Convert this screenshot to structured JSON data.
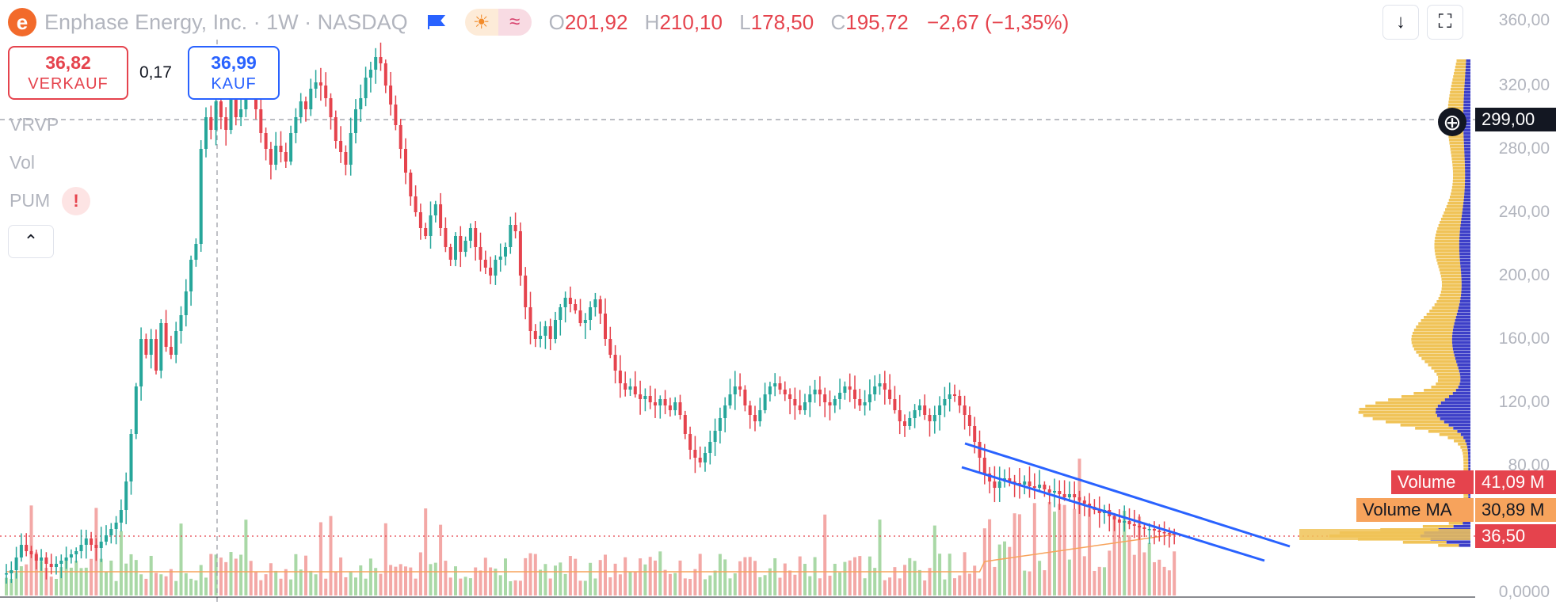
{
  "header": {
    "symbol_icon": "enphase-logo-icon",
    "title": "Enphase Energy, Inc. · 1W · NASDAQ",
    "ohlc": {
      "o_key": "O",
      "o": "201,92",
      "h_key": "H",
      "h": "210,10",
      "l_key": "L",
      "l": "178,50",
      "c_key": "C",
      "c": "195,72",
      "change": "−2,67 (−1,35%)"
    },
    "toolbar": [
      "arrow-down-icon",
      "fullscreen-icon"
    ]
  },
  "trade": {
    "sell_price": "36,82",
    "sell_label": "VERKAUF",
    "spread": "0,17",
    "buy_price": "36,99",
    "buy_label": "KAUF"
  },
  "indicators": [
    "VRVP",
    "Vol",
    "PUM"
  ],
  "price_axis": {
    "ticks": [
      "360,00",
      "320,00",
      "280,00",
      "240,00",
      "200,00",
      "160,00",
      "120,00",
      "80,00",
      "0,0000"
    ],
    "crosshair_price": "299,00",
    "current_price": "36,50",
    "volume_label": "Volume",
    "volume_value": "41,09 M",
    "volume_ma_label": "Volume MA",
    "volume_ma_value": "30,89 M"
  },
  "colors": {
    "up": "#26a69a",
    "down": "#e5434d",
    "vol_up": "#a9d8a6",
    "vol_down": "#f3a8a6",
    "channel": "#2962ff",
    "vrvp_up": "#f0c357",
    "vrvp_down": "#3d3fc8",
    "volume_ma": "#f7a35c"
  },
  "chart_data": {
    "type": "candlestick",
    "interval": "1W",
    "y_range": [
      0,
      360
    ],
    "close_path": [
      12,
      14,
      22,
      30,
      26,
      24,
      20,
      22,
      18,
      16,
      18,
      20,
      22,
      24,
      26,
      30,
      34,
      30,
      28,
      32,
      36,
      40,
      44,
      52,
      70,
      100,
      130,
      160,
      150,
      160,
      140,
      170,
      155,
      150,
      165,
      175,
      190,
      210,
      220,
      280,
      300,
      292,
      310,
      300,
      292,
      315,
      300,
      305,
      330,
      320,
      305,
      290,
      280,
      270,
      282,
      278,
      272,
      290,
      300,
      310,
      305,
      318,
      322,
      320,
      312,
      300,
      285,
      278,
      270,
      290,
      305,
      312,
      325,
      330,
      338,
      334,
      320,
      308,
      295,
      280,
      265,
      250,
      240,
      230,
      225,
      238,
      245,
      230,
      218,
      210,
      225,
      215,
      222,
      230,
      218,
      210,
      205,
      200,
      210,
      212,
      218,
      232,
      228,
      200,
      180,
      165,
      160,
      162,
      168,
      160,
      172,
      180,
      186,
      182,
      178,
      170,
      172,
      180,
      185,
      176,
      160,
      150,
      140,
      132,
      128,
      130,
      125,
      122,
      124,
      120,
      118,
      122,
      118,
      115,
      120,
      112,
      100,
      90,
      85,
      82,
      88,
      95,
      102,
      110,
      118,
      125,
      130,
      128,
      118,
      112,
      108,
      115,
      125,
      130,
      132,
      128,
      125,
      122,
      118,
      115,
      120,
      125,
      128,
      125,
      120,
      118,
      122,
      126,
      130,
      128,
      122,
      118,
      120,
      125,
      130,
      132,
      128,
      122,
      115,
      108,
      105,
      110,
      115,
      118,
      112,
      108,
      112,
      118,
      122,
      125,
      124,
      118,
      112,
      105,
      95,
      85,
      75,
      70,
      66,
      70,
      72,
      70,
      69,
      68,
      70,
      67,
      66,
      68,
      65,
      63,
      64,
      62,
      60,
      62,
      60,
      58,
      56,
      54,
      52,
      50,
      52,
      48,
      46,
      44,
      45,
      43,
      42,
      41,
      40,
      40,
      39,
      38,
      37.5,
      37,
      36.5
    ],
    "vrvp_profile": "volume by price, concentrated near 100–130 and 36–40"
  }
}
